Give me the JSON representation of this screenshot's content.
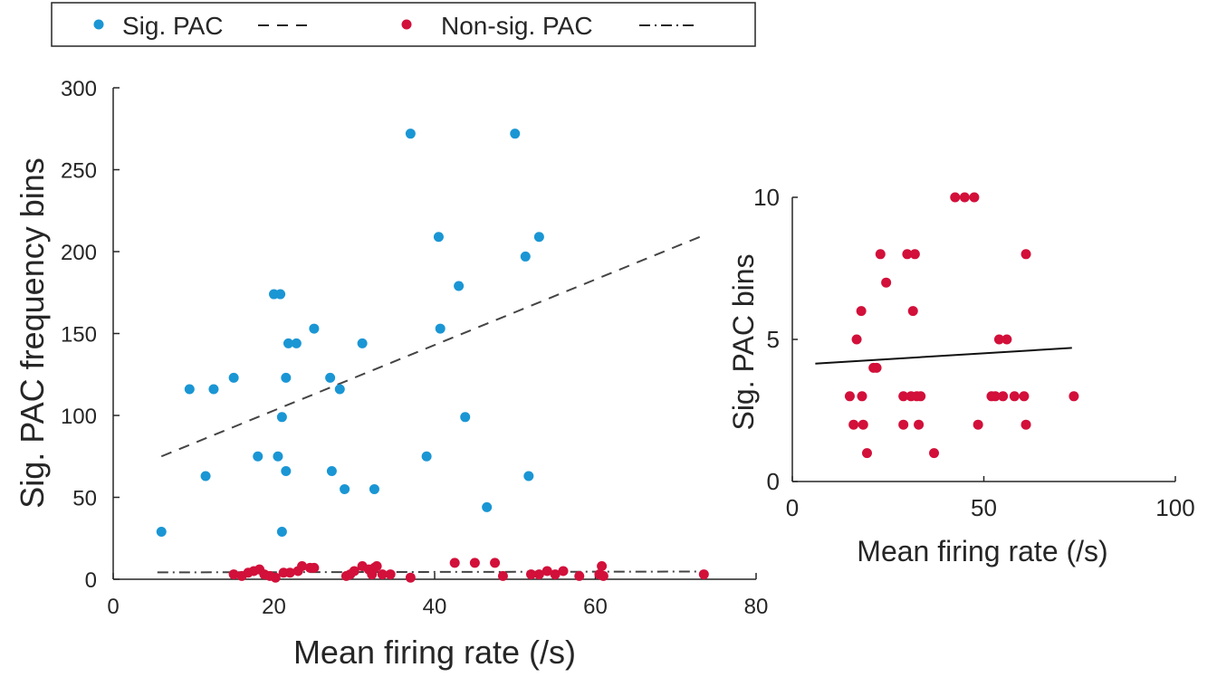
{
  "legend": {
    "sig_label": "Sig. PAC",
    "nonsig_label": "Non-sig. PAC",
    "sig_line_sample": "– – –",
    "nonsig_line_sample": "–·–·–"
  },
  "colors": {
    "sig": "#1a96d4",
    "nonsig": "#d2103a",
    "fit": "#444444",
    "axis": "#262626"
  },
  "chart_data": [
    {
      "type": "scatter",
      "title": "",
      "xlabel": "Mean firing rate (/s)",
      "ylabel": "Sig. PAC frequency bins",
      "xlim": [
        0,
        80
      ],
      "ylim": [
        0,
        300
      ],
      "xticks": [
        "0",
        "20",
        "40",
        "60",
        "80"
      ],
      "yticks": [
        "0",
        "50",
        "100",
        "150",
        "200",
        "250",
        "300"
      ],
      "grid": false,
      "legend_position": "top",
      "series": [
        {
          "name": "Sig. PAC",
          "color": "#1a96d4",
          "points": [
            [
              6,
              29
            ],
            [
              9.5,
              116
            ],
            [
              11.5,
              63
            ],
            [
              12.5,
              116
            ],
            [
              15,
              123
            ],
            [
              18,
              75
            ],
            [
              20,
              174
            ],
            [
              20.5,
              75
            ],
            [
              20.8,
              174
            ],
            [
              21,
              29
            ],
            [
              21,
              99
            ],
            [
              21.5,
              66
            ],
            [
              21.5,
              123
            ],
            [
              21.8,
              144
            ],
            [
              22.8,
              144
            ],
            [
              25,
              153
            ],
            [
              27,
              123
            ],
            [
              27.2,
              66
            ],
            [
              28.2,
              116
            ],
            [
              28.8,
              55
            ],
            [
              31,
              144
            ],
            [
              32.5,
              55
            ],
            [
              37,
              272
            ],
            [
              39,
              75
            ],
            [
              40.5,
              209
            ],
            [
              40.7,
              153
            ],
            [
              43,
              179
            ],
            [
              43.8,
              99
            ],
            [
              46.5,
              44
            ],
            [
              50,
              272
            ],
            [
              51.3,
              197
            ],
            [
              51.7,
              63
            ],
            [
              53,
              209
            ]
          ],
          "fit": {
            "style": "dashed",
            "x": [
              6,
              73
            ],
            "y": [
              75,
              209
            ]
          }
        },
        {
          "name": "Non-sig. PAC",
          "color": "#d2103a",
          "points": [
            [
              15,
              3
            ],
            [
              16,
              2
            ],
            [
              16.8,
              4
            ],
            [
              17.5,
              5
            ],
            [
              18.2,
              6
            ],
            [
              18.8,
              3
            ],
            [
              19.5,
              2
            ],
            [
              20.2,
              1
            ],
            [
              21.2,
              4
            ],
            [
              22,
              4
            ],
            [
              23,
              5
            ],
            [
              23.5,
              8
            ],
            [
              24.5,
              7
            ],
            [
              25,
              7
            ],
            [
              29,
              2
            ],
            [
              29.5,
              3
            ],
            [
              30,
              5
            ],
            [
              31,
              8
            ],
            [
              31.8,
              6
            ],
            [
              32.2,
              3
            ],
            [
              32.5,
              7
            ],
            [
              32.8,
              8
            ],
            [
              33.5,
              3
            ],
            [
              34.5,
              3
            ],
            [
              37,
              1
            ],
            [
              42.5,
              10
            ],
            [
              45,
              10
            ],
            [
              47.5,
              10
            ],
            [
              48.5,
              2
            ],
            [
              52,
              3
            ],
            [
              53,
              3
            ],
            [
              54,
              5
            ],
            [
              55,
              3
            ],
            [
              56,
              5
            ],
            [
              58,
              2
            ],
            [
              60.5,
              3
            ],
            [
              60.8,
              8
            ],
            [
              61,
              2
            ],
            [
              73.5,
              3
            ]
          ],
          "fit": {
            "style": "dashdot",
            "x": [
              5.5,
              73
            ],
            "y": [
              4.2,
              4.7
            ]
          }
        }
      ]
    },
    {
      "type": "scatter",
      "title": "",
      "xlabel": "Mean firing rate (/s)",
      "ylabel": "Sig.  PAC bins",
      "xlim": [
        0,
        100
      ],
      "ylim": [
        0,
        10
      ],
      "xticks": [
        "0",
        "50",
        "100"
      ],
      "yticks": [
        "0",
        "5",
        "10"
      ],
      "grid": false,
      "series": [
        {
          "name": "Non-sig. PAC",
          "color": "#d2103a",
          "points": [
            [
              15,
              3
            ],
            [
              16,
              2
            ],
            [
              16.8,
              5
            ],
            [
              18,
              6
            ],
            [
              18.2,
              3
            ],
            [
              18.5,
              2
            ],
            [
              19.5,
              1
            ],
            [
              21.2,
              4
            ],
            [
              22,
              4
            ],
            [
              23,
              8
            ],
            [
              24.5,
              7
            ],
            [
              29,
              3
            ],
            [
              29,
              2
            ],
            [
              30,
              8
            ],
            [
              31,
              3
            ],
            [
              31.5,
              6
            ],
            [
              32,
              8
            ],
            [
              32.5,
              3
            ],
            [
              33,
              2
            ],
            [
              33.5,
              3
            ],
            [
              37,
              1
            ],
            [
              42.5,
              10
            ],
            [
              45,
              10
            ],
            [
              47.5,
              10
            ],
            [
              48.5,
              2
            ],
            [
              52,
              3
            ],
            [
              53,
              3
            ],
            [
              54,
              5
            ],
            [
              55,
              3
            ],
            [
              56,
              5
            ],
            [
              58,
              3
            ],
            [
              60.5,
              3
            ],
            [
              61,
              8
            ],
            [
              61,
              2
            ],
            [
              73.5,
              3
            ]
          ],
          "fit": {
            "style": "solid",
            "x": [
              6,
              73
            ],
            "y": [
              4.15,
              4.7
            ]
          }
        }
      ]
    }
  ]
}
